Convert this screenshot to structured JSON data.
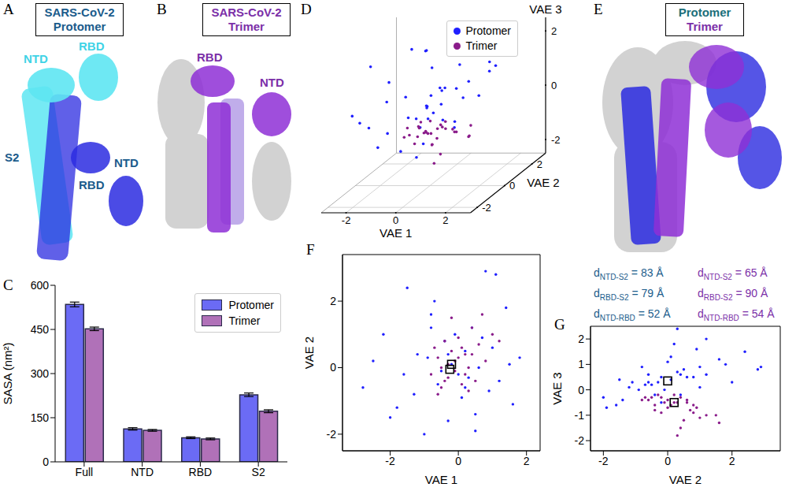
{
  "structures": [
    {
      "letter": "A",
      "title": "SARS-CoV-2 Protomer",
      "title_color": "#1b5c8c",
      "labels": [
        {
          "text": "NTD",
          "color": "#3fd3e6"
        },
        {
          "text": "RBD",
          "color": "#3fd3e6"
        },
        {
          "text": "S2",
          "color": "#1b5c8c"
        },
        {
          "text": "NTD",
          "color": "#1b5c8c"
        },
        {
          "text": "RBD",
          "color": "#1b5c8c"
        }
      ]
    },
    {
      "letter": "B",
      "title": "SARS-CoV-2 Trimer",
      "title_color": "#7b2fa8",
      "labels": [
        {
          "text": "RBD",
          "color": "#7b2fa8"
        },
        {
          "text": "NTD",
          "color": "#7b2fa8"
        }
      ]
    },
    {
      "letter": "E",
      "title_lines": [
        {
          "text": "Protomer",
          "color": "#1b6f7a"
        },
        {
          "text": "Trimer",
          "color": "#7b2fa8"
        }
      ],
      "distances": {
        "symbol": "d",
        "relation": "=",
        "unit": "Å",
        "groups": [
          {
            "color": "#1b5c8c",
            "items": [
              {
                "label": "NTD-S2",
                "value": 83
              },
              {
                "label": "RBD-S2",
                "value": 79
              },
              {
                "label": "NTD-RBD",
                "value": 52
              }
            ]
          },
          {
            "color": "#7b2fa8",
            "items": [
              {
                "label": "NTD-S2",
                "value": 65
              },
              {
                "label": "RBD-S2",
                "value": 90
              },
              {
                "label": "NTD-RBD",
                "value": 54
              }
            ]
          }
        ]
      }
    }
  ],
  "chart_data": [
    {
      "letter": "C",
      "type": "bar",
      "categories": [
        "Full",
        "NTD",
        "RBD",
        "S2"
      ],
      "y_label": "SASA (nm²)",
      "ylim": [
        0,
        600
      ],
      "yticks": [
        0,
        150,
        300,
        450,
        600
      ],
      "legend": "upper right",
      "series": [
        {
          "name": "Protomer",
          "color": "#6b6bf5",
          "values": [
            535,
            112,
            82,
            228
          ],
          "errors": [
            8,
            4,
            3,
            6
          ]
        },
        {
          "name": "Trimer",
          "color": "#b071b8",
          "values": [
            452,
            107,
            78,
            172
          ],
          "errors": [
            6,
            3,
            3,
            5
          ]
        }
      ]
    },
    {
      "letter": "D",
      "type": "scatter3d",
      "x_label": "VAE 1",
      "y_label": "VAE 2",
      "z_label": "VAE 3",
      "xlim": [
        -3,
        3
      ],
      "ylim": [
        -2.5,
        3
      ],
      "zlim": [
        -2.5,
        2.5
      ],
      "xticks": [
        -2,
        0,
        2
      ],
      "yticks": [
        -2,
        0,
        2
      ],
      "zticks": [
        -2,
        0,
        2
      ],
      "legend": "upper right",
      "series": [
        {
          "name": "Protomer",
          "color": "#1f1fff",
          "x": [
            -2.8,
            -2.2,
            -1.8,
            -1.5,
            -1.2,
            -1.0,
            -0.8,
            -0.6,
            -0.4,
            -0.3,
            -0.2,
            -0.8,
            0.1,
            0.2,
            0.3,
            0.4,
            0.5,
            0.6,
            0.8,
            0.9,
            1.0,
            1.2,
            1.4,
            1.6,
            1.8,
            -2.5,
            -1.6,
            -0.9,
            -0.5,
            -0.1,
            0.2,
            0.7,
            1.1,
            -1.3,
            -0.7,
            0.5,
            -2.0,
            1.5,
            -0.3,
            0.0
          ],
          "y": [
            -0.6,
            1.0,
            -1.2,
            2.4,
            0.4,
            -2.0,
            1.6,
            -0.5,
            0.8,
            -1.6,
            0.1,
            1.2,
            -0.9,
            0.5,
            -0.3,
            1.2,
            -1.4,
            0.0,
            2.9,
            -0.7,
            0.6,
            -0.4,
            1.8,
            -1.1,
            0.3,
            0.2,
            -0.2,
            0.3,
            -0.1,
            1.0,
            -0.6,
            0.9,
            2.8,
            -0.8,
            2.0,
            -1.9,
            -1.5,
            0.1,
            0.4,
            -0.2
          ],
          "z": [
            0.3,
            0.9,
            0.1,
            1.5,
            0.6,
            -0.3,
            1.2,
            0.2,
            0.5,
            -0.6,
            0.4,
            2.0,
            0.0,
            0.8,
            0.3,
            0.6,
            -0.4,
            1.1,
            0.9,
            0.2,
            0.5,
            -0.2,
            1.0,
            0.3,
            0.7,
            1.8,
            -0.5,
            2.4,
            0.0,
            0.1,
            0.6,
            1.6,
            0.8,
            0.9,
            0.3,
            -0.7,
            0.4,
            1.3,
            -0.2,
            0.5
          ]
        },
        {
          "name": "Trimer",
          "color": "#8a1c8a",
          "x": [
            -0.8,
            -0.6,
            -0.5,
            -0.4,
            -0.3,
            -0.3,
            -0.2,
            -0.1,
            0.0,
            0.1,
            0.2,
            0.3,
            0.4,
            0.5,
            0.6,
            0.8,
            1.0,
            1.2,
            -0.7,
            -0.2,
            0.0,
            -0.5,
            0.3,
            0.1,
            -0.4,
            0.7,
            -0.1,
            0.2,
            -0.6,
            0.4
          ],
          "y": [
            -0.2,
            0.3,
            -0.6,
            0.8,
            0.1,
            -0.3,
            0.5,
            -0.1,
            0.9,
            -0.5,
            0.4,
            0.0,
            1.2,
            -0.4,
            0.7,
            0.2,
            1.0,
            0.8,
            0.6,
            1.5,
            0.3,
            0.0,
            -0.7,
            0.6,
            -0.4,
            1.6,
            0.2,
            -0.2,
            -0.8,
            0.4
          ],
          "z": [
            -0.3,
            -0.5,
            -0.4,
            -0.9,
            -0.6,
            -0.2,
            -1.2,
            -0.5,
            -0.7,
            -0.3,
            -1.5,
            -0.4,
            -1.0,
            -0.6,
            -0.8,
            -0.5,
            -1.1,
            -0.6,
            -0.4,
            -1.0,
            -1.8,
            -0.7,
            -0.3,
            -0.5,
            -0.8,
            -1.3,
            -0.2,
            -0.9,
            -0.4,
            -0.3
          ]
        }
      ]
    },
    {
      "letter": "F",
      "type": "scatter",
      "x_label": "VAE 1",
      "y_label": "VAE 2",
      "xlim": [
        -3.4,
        2.4
      ],
      "ylim": [
        -2.5,
        3.4
      ],
      "xticks": [
        -2,
        0,
        2
      ],
      "yticks": [
        -2,
        0,
        2
      ],
      "series": [
        {
          "color": "#1f1fff",
          "x": [
            -2.8,
            -2.2,
            -1.8,
            -1.5,
            -1.2,
            -1.0,
            -0.8,
            -0.6,
            -0.4,
            -0.3,
            -0.2,
            -0.8,
            0.1,
            0.2,
            0.3,
            0.4,
            0.5,
            0.6,
            0.8,
            0.9,
            1.0,
            1.2,
            1.4,
            1.6,
            1.8,
            -2.5,
            -1.6,
            -0.9,
            -0.5,
            -0.1,
            0.2,
            0.7,
            1.1,
            -1.3,
            -0.7,
            0.5,
            -2.0,
            1.5,
            -0.3,
            0.0
          ],
          "y": [
            -0.6,
            1.0,
            -1.2,
            2.4,
            0.4,
            -2.0,
            1.6,
            -0.5,
            0.8,
            -1.6,
            0.1,
            1.2,
            -0.9,
            0.5,
            -0.3,
            1.2,
            -1.4,
            0.0,
            2.9,
            -0.7,
            0.6,
            -0.4,
            1.8,
            -1.1,
            0.3,
            0.2,
            -0.2,
            0.3,
            -0.1,
            1.0,
            -0.6,
            0.9,
            2.8,
            -0.8,
            2.0,
            -1.9,
            -1.5,
            0.1,
            0.4,
            -0.2
          ],
          "mean": [
            -0.2,
            0.1
          ]
        },
        {
          "color": "#8a1c8a",
          "x": [
            -0.8,
            -0.6,
            -0.5,
            -0.4,
            -0.3,
            -0.3,
            -0.2,
            -0.1,
            0.0,
            0.1,
            0.2,
            0.3,
            0.4,
            0.5,
            0.6,
            0.8,
            1.0,
            1.2,
            -0.7,
            -0.2,
            0.0,
            -0.5,
            0.3,
            0.1,
            -0.4,
            0.7,
            -0.1,
            0.2,
            -0.6,
            0.4
          ],
          "y": [
            -0.2,
            0.3,
            -0.6,
            0.8,
            0.1,
            -0.3,
            0.5,
            -0.1,
            0.9,
            -0.5,
            0.4,
            0.0,
            1.2,
            -0.4,
            0.7,
            0.2,
            1.0,
            0.8,
            0.6,
            1.5,
            0.3,
            0.0,
            -0.7,
            0.6,
            -0.4,
            1.6,
            0.2,
            -0.2,
            -0.8,
            0.4
          ],
          "mean": [
            -0.25,
            -0.05
          ]
        }
      ]
    },
    {
      "letter": "G",
      "type": "scatter",
      "x_label": "VAE 2",
      "y_label": "VAE 3",
      "xlim": [
        -2.4,
        3.5
      ],
      "ylim": [
        -2.4,
        2.5
      ],
      "xticks": [
        -2,
        0,
        2
      ],
      "yticks": [
        -2,
        -1,
        0,
        1,
        2
      ],
      "series": [
        {
          "color": "#1f1fff",
          "x": [
            -0.6,
            1.0,
            -1.2,
            2.4,
            0.4,
            -2.0,
            1.6,
            -0.5,
            0.8,
            -1.6,
            0.1,
            1.2,
            -0.9,
            0.5,
            -0.3,
            1.2,
            -1.4,
            0.0,
            2.9,
            -0.7,
            0.6,
            -0.4,
            1.8,
            -1.1,
            0.3,
            0.2,
            -0.2,
            0.3,
            -0.1,
            1.0,
            -0.6,
            0.9,
            2.8,
            -0.8,
            2.0,
            -1.9,
            -1.5,
            0.1,
            0.4,
            -0.2
          ],
          "y": [
            0.3,
            0.9,
            0.1,
            1.5,
            0.6,
            -0.3,
            1.2,
            0.2,
            0.5,
            -0.6,
            0.4,
            2.0,
            0.0,
            0.8,
            0.3,
            0.6,
            -0.4,
            1.1,
            0.9,
            0.2,
            0.5,
            -0.2,
            1.0,
            0.3,
            0.7,
            1.8,
            -0.5,
            2.4,
            0.0,
            0.1,
            0.6,
            1.6,
            0.8,
            0.9,
            0.3,
            -0.7,
            0.4,
            1.3,
            -0.2,
            0.5
          ],
          "mean": [
            0.0,
            0.35
          ]
        },
        {
          "color": "#8a1c8a",
          "x": [
            -0.2,
            0.3,
            -0.6,
            0.8,
            0.1,
            -0.3,
            0.5,
            -0.1,
            0.9,
            -0.5,
            0.4,
            0.0,
            1.2,
            -0.4,
            0.7,
            0.2,
            1.0,
            0.8,
            0.6,
            1.5,
            0.3,
            0.0,
            -0.7,
            0.6,
            -0.4,
            1.6,
            0.2,
            -0.2,
            -0.8,
            0.4
          ],
          "y": [
            -0.3,
            -0.5,
            -0.4,
            -0.9,
            -0.6,
            -0.2,
            -1.2,
            -0.5,
            -0.7,
            -0.3,
            -1.5,
            -0.4,
            -1.0,
            -0.6,
            -0.8,
            -0.5,
            -1.1,
            -0.6,
            -0.4,
            -1.0,
            -1.8,
            -0.7,
            -0.3,
            -0.5,
            -0.8,
            -1.3,
            -0.2,
            -0.9,
            -0.4,
            -0.3
          ],
          "mean": [
            0.2,
            -0.5
          ]
        }
      ]
    }
  ]
}
